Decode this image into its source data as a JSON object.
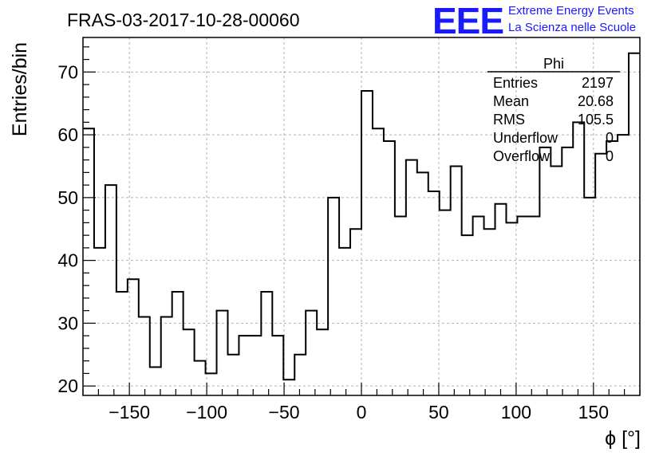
{
  "header": {
    "title": "FRAS-03-2017-10-28-00060",
    "logo": "EEE",
    "brand_line1": "Extreme Energy Events",
    "brand_line2": "La Scienza nelle Scuole"
  },
  "stats": {
    "name": "Phi",
    "rows": [
      {
        "label": "Entries",
        "value": "2197"
      },
      {
        "label": "Mean",
        "value": "20.68"
      },
      {
        "label": "RMS",
        "value": "105.5"
      },
      {
        "label": "Underflow",
        "value": "0"
      },
      {
        "label": "Overflow",
        "value": "0"
      }
    ]
  },
  "chart_data": {
    "type": "bar",
    "style": "step-histogram",
    "title": "FRAS-03-2017-10-28-00060",
    "xlabel": "ϕ [°]",
    "ylabel": "Entries/bin",
    "xlim": [
      -180,
      180
    ],
    "ylim": [
      18.5,
      75.5
    ],
    "bin_width": 7.2,
    "x_ticks": [
      -150,
      -100,
      -50,
      0,
      50,
      100,
      150
    ],
    "x_tick_labels": [
      "−150",
      "−100",
      "−50",
      "0",
      "50",
      "100",
      "150"
    ],
    "y_ticks": [
      20,
      30,
      40,
      50,
      60,
      70
    ],
    "y_tick_labels": [
      "20",
      "30",
      "40",
      "50",
      "60",
      "70"
    ],
    "grid": true,
    "values": [
      61,
      42,
      52,
      35,
      37,
      31,
      23,
      31,
      35,
      29,
      24,
      22,
      32,
      25,
      28,
      28,
      35,
      28,
      21,
      25,
      32,
      29,
      50,
      42,
      45,
      67,
      61,
      59,
      47,
      56,
      54,
      51,
      48,
      55,
      44,
      47,
      45,
      49,
      46,
      47,
      47,
      58,
      55,
      58,
      62,
      50,
      57,
      59,
      60,
      73
    ]
  }
}
